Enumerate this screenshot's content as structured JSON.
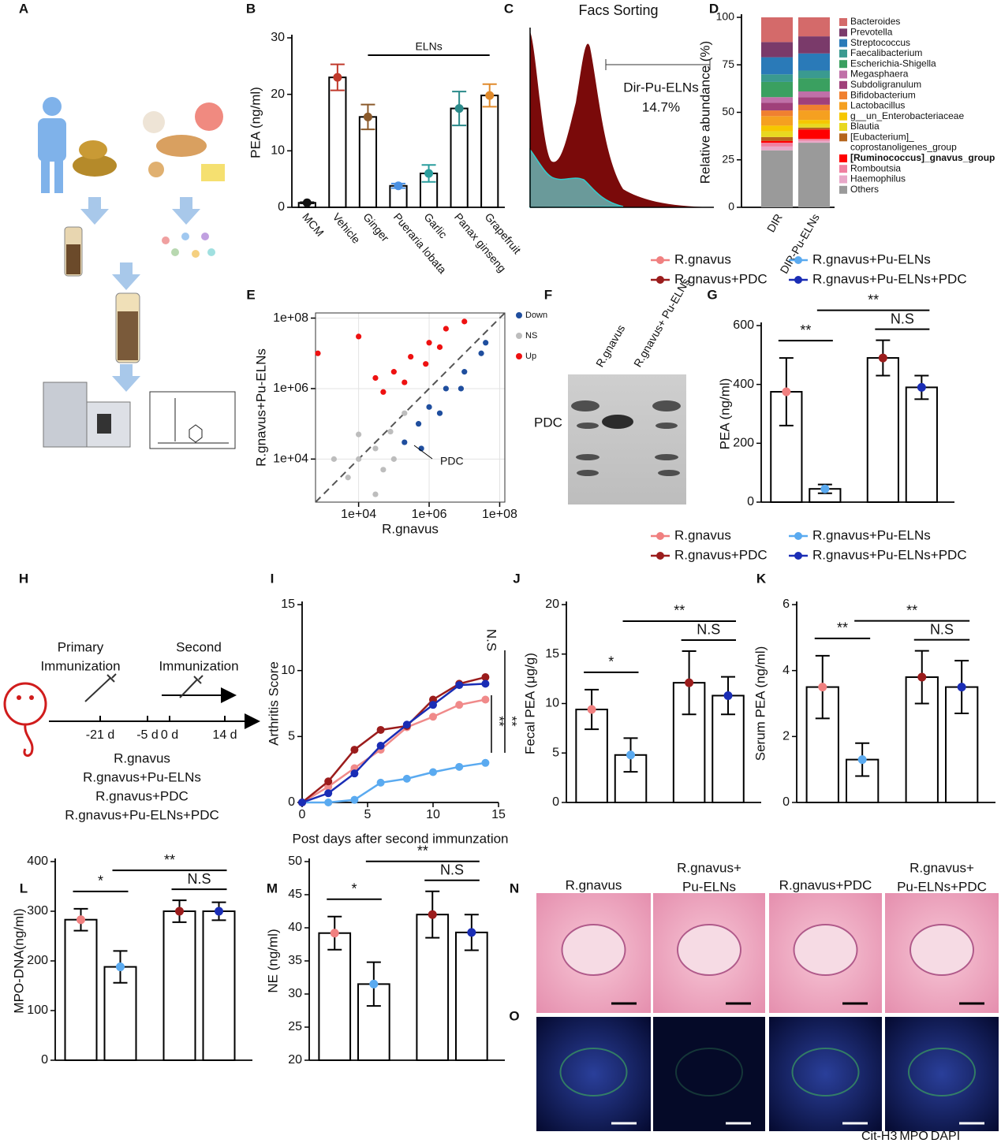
{
  "panel_labels": [
    "A",
    "B",
    "C",
    "D",
    "E",
    "F",
    "G",
    "H",
    "I",
    "J",
    "K",
    "L",
    "M",
    "N",
    "O"
  ],
  "facs": {
    "title": "Facs Sorting",
    "gate": "Dir-Pu-ELNs",
    "percent": "14.7%"
  },
  "blot": {
    "lanes": [
      "R.gnavus",
      "R.gnavus+ Pu-ELNs"
    ],
    "band": "PDC"
  },
  "timeline": {
    "primary": [
      "Primary",
      "Immunization"
    ],
    "second": [
      "Second",
      "Immunization"
    ],
    "days": [
      "-21 d",
      "-5 d",
      "0 d",
      "14 d"
    ],
    "groups": [
      "R.gnavus",
      "R.gnavus+Pu-ELNs",
      "R.gnavus+PDC",
      "R.gnavus+Pu-ELNs+PDC"
    ]
  },
  "histology": {
    "titles": [
      [
        "R.gnavus"
      ],
      [
        "R.gnavus+",
        "Pu-ELNs"
      ],
      [
        "R.gnavus+PDC"
      ],
      [
        "R.gnavus+",
        "Pu-ELNs+PDC"
      ]
    ]
  },
  "staining": [
    {
      "text": "Cit-H3",
      "color": "#e0252a"
    },
    {
      "text": "MPO",
      "color": "#1f9a3a"
    },
    {
      "text": "DAPI",
      "color": "#1f3fb5"
    }
  ],
  "chart_data": [
    {
      "type": "bar",
      "ylabel": "PEA (ng/ml)",
      "categories": [
        "MCM",
        "Vehicle",
        "Ginger",
        "Pueraria lobata",
        "Garlic",
        "Panax ginseng",
        "Grapefruit"
      ],
      "values": [
        0.8,
        23,
        16,
        3.8,
        6,
        17.5,
        19.8
      ],
      "errors": [
        0.1,
        2.3,
        2.2,
        0.4,
        1.5,
        3,
        2
      ],
      "colors": [
        "#111111",
        "#c0392b",
        "#8b5a2b",
        "#4a90e2",
        "#2a9d9d",
        "#2a8a8a",
        "#e08a2b"
      ],
      "ylim": [
        0,
        30
      ],
      "yticks": [
        0,
        10,
        20,
        30
      ],
      "annotations": [
        "ELNs"
      ]
    },
    {
      "type": "stacked_bar",
      "ylabel": "Relative abundance (%)",
      "categories": [
        "DIR",
        "DIR-Pu-ELNs"
      ],
      "ylim": [
        0,
        100
      ],
      "yticks": [
        0,
        25,
        50,
        75,
        100
      ],
      "series": [
        {
          "name": "Bacteroides",
          "color": "#d46a6a",
          "values": [
            13,
            10
          ]
        },
        {
          "name": "Prevotella",
          "color": "#7a3a6a",
          "values": [
            8,
            9
          ]
        },
        {
          "name": "Streptococcus",
          "color": "#2a7ab8",
          "values": [
            9,
            9
          ]
        },
        {
          "name": "Faecalibacterium",
          "color": "#3a9a90",
          "values": [
            4,
            4
          ]
        },
        {
          "name": "Escherichia-Shigella",
          "color": "#3aa060",
          "values": [
            8,
            7
          ]
        },
        {
          "name": "Megasphaera",
          "color": "#c070a8",
          "values": [
            3,
            3
          ]
        },
        {
          "name": "Subdoligranulum",
          "color": "#a0407a",
          "values": [
            4,
            4
          ]
        },
        {
          "name": "Bifidobacterium",
          "color": "#f08030",
          "values": [
            3,
            3
          ]
        },
        {
          "name": "Lactobacillus",
          "color": "#f5a020",
          "values": [
            5,
            5
          ]
        },
        {
          "name": "g__un_Enterobacteriaceae",
          "color": "#f6c700",
          "values": [
            3,
            2
          ]
        },
        {
          "name": "Blautia",
          "color": "#e8d820",
          "values": [
            3,
            2
          ]
        },
        {
          "name": "[Eubacterium]_ coprostanoligenes_group",
          "color": "#b5651d",
          "values": [
            2,
            1
          ]
        },
        {
          "name": "[Ruminococcus]_gnavus_group",
          "color": "#ff0000",
          "values": [
            1,
            5
          ],
          "highlight": true
        },
        {
          "name": "Romboutsia",
          "color": "#f080a0",
          "values": [
            2,
            1
          ]
        },
        {
          "name": "Haemophilus",
          "color": "#e8a8c8",
          "values": [
            2,
            1
          ]
        },
        {
          "name": "Others",
          "color": "#9a9a9a",
          "values": [
            30,
            34
          ]
        }
      ]
    },
    {
      "type": "scatter",
      "xlabel": "R.gnavus",
      "ylabel": "R.gnavus+Pu-ELNs",
      "log": true,
      "grid": true,
      "xlim": [
        600,
        140000000
      ],
      "ylim": [
        600,
        140000000
      ],
      "xticks": [
        {
          "value": 10000,
          "label": "1e+04"
        },
        {
          "value": 1000000,
          "label": "1e+06"
        },
        {
          "value": 100000000,
          "label": "1e+08"
        }
      ],
      "yticks": [
        {
          "value": 10000,
          "label": "1e+04"
        },
        {
          "value": 1000000,
          "label": "1e+06"
        },
        {
          "value": 100000000,
          "label": "1e+08"
        }
      ],
      "series": [
        {
          "name": "Down",
          "color": "#1f4e9e",
          "x": [
            200000,
            500000,
            1000000,
            3000000,
            10000000,
            30000000,
            600000,
            2000000,
            8000000,
            40000000
          ],
          "values": [
            30000,
            100000,
            300000,
            1000000,
            3000000,
            10000000,
            20000,
            200000,
            1000000,
            20000000
          ]
        },
        {
          "name": "NS",
          "color": "#bdbdbd",
          "x": [
            5000,
            10000,
            30000,
            80000,
            200000,
            50000,
            10000,
            2000,
            100000,
            30000
          ],
          "values": [
            3000,
            10000,
            20000,
            60000,
            200000,
            5000,
            50000,
            10000,
            10000,
            1000
          ]
        },
        {
          "name": "Up",
          "color": "#ee1111",
          "x": [
            30000,
            100000,
            300000,
            1000000,
            3000000,
            10000000,
            50000,
            200000,
            800000,
            2000000,
            10000,
            700
          ],
          "values": [
            2000000,
            3000000,
            8000000,
            20000000,
            50000000,
            80000000,
            800000,
            1500000,
            5000000,
            15000000,
            30000000,
            10000000
          ]
        }
      ],
      "annotations": [
        "PDC"
      ]
    },
    {
      "type": "bar",
      "ylabel": "PEA (ng/ml)",
      "ylim": [
        0,
        600
      ],
      "yticks": [
        0,
        200,
        400,
        600
      ],
      "series": [
        {
          "name": "R.gnavus",
          "color": "#f08080",
          "values": [
            375
          ],
          "errors": [
            115
          ]
        },
        {
          "name": "R.gnavus+Pu-ELNs",
          "color": "#5aaaf0",
          "values": [
            45
          ],
          "errors": [
            15
          ]
        },
        {
          "name": "R.gnavus+PDC",
          "color": "#9b1c1c",
          "values": [
            490
          ],
          "errors": [
            60
          ]
        },
        {
          "name": "R.gnavus+Pu-ELNs+PDC",
          "color": "#1a2db5",
          "values": [
            390
          ],
          "errors": [
            40
          ]
        }
      ],
      "annotations": [
        "**",
        "**",
        "N.S"
      ]
    },
    {
      "type": "line",
      "xlabel": "Post days after second immunzation",
      "ylabel": "Arthritis Score",
      "x": [
        0,
        2,
        4,
        6,
        8,
        10,
        12,
        14
      ],
      "xlim": [
        0,
        15
      ],
      "ylim": [
        0,
        15
      ],
      "xticks": [
        0,
        5,
        10,
        15
      ],
      "yticks": [
        0,
        5,
        10,
        15
      ],
      "series": [
        {
          "color": "#f08a8a",
          "values": [
            0,
            1.2,
            2.6,
            4,
            5.7,
            6.5,
            7.4,
            7.8
          ]
        },
        {
          "color": "#5aaaf0",
          "values": [
            0,
            0,
            0.2,
            1.5,
            1.8,
            2.3,
            2.7,
            3
          ]
        },
        {
          "color": "#9b1c1c",
          "values": [
            0,
            1.6,
            4,
            5.5,
            5.8,
            7.8,
            9,
            9.5
          ]
        },
        {
          "color": "#1a2db5",
          "values": [
            0,
            0.7,
            2.2,
            4.3,
            5.9,
            7.4,
            8.9,
            9
          ]
        }
      ],
      "annotations": [
        "N.S",
        "**",
        "**"
      ]
    },
    {
      "type": "bar",
      "ylabel": "Fecal PEA (μg/g)",
      "ylim": [
        0,
        20
      ],
      "yticks": [
        0,
        5,
        10,
        15,
        20
      ],
      "series": [
        {
          "name": "R.gnavus",
          "color": "#f08080",
          "values": [
            9.4
          ],
          "errors": [
            2
          ]
        },
        {
          "name": "R.gnavus+Pu-ELNs",
          "color": "#5aaaf0",
          "values": [
            4.8
          ],
          "errors": [
            1.7
          ]
        },
        {
          "name": "R.gnavus+PDC",
          "color": "#9b1c1c",
          "values": [
            12.1
          ],
          "errors": [
            3.2
          ]
        },
        {
          "name": "R.gnavus+Pu-ELNs+PDC",
          "color": "#1a2db5",
          "values": [
            10.8
          ],
          "errors": [
            1.9
          ]
        }
      ],
      "annotations": [
        "*",
        "**",
        "N.S"
      ]
    },
    {
      "type": "bar",
      "ylabel": "Serum PEA (ng/ml)",
      "ylim": [
        0,
        6
      ],
      "yticks": [
        0,
        2,
        4,
        6
      ],
      "values": [
        3.5,
        1.3,
        3.8,
        3.5
      ],
      "errors": [
        0.95,
        0.5,
        0.8,
        0.8
      ],
      "colors": [
        "#f08080",
        "#5aaaf0",
        "#9b1c1c",
        "#1a2db5"
      ],
      "annotations": [
        "**",
        "**",
        "N.S"
      ]
    },
    {
      "type": "bar",
      "ylabel": "MPO-DNA(ng/ml)",
      "ylim": [
        0,
        400
      ],
      "yticks": [
        0,
        100,
        200,
        300,
        400
      ],
      "values": [
        283,
        188,
        300,
        300
      ],
      "errors": [
        22,
        32,
        22,
        18
      ],
      "colors": [
        "#f08080",
        "#5aaaf0",
        "#9b1c1c",
        "#1a2db5"
      ],
      "annotations": [
        "*",
        "**",
        "N.S"
      ]
    },
    {
      "type": "bar",
      "ylabel": "NE (ng/ml)",
      "ylim": [
        20,
        50
      ],
      "yticks": [
        20,
        25,
        30,
        35,
        40,
        45,
        50
      ],
      "values": [
        39.2,
        31.5,
        42,
        39.3
      ],
      "errors": [
        2.5,
        3.3,
        3.5,
        2.7
      ],
      "colors": [
        "#f08080",
        "#5aaaf0",
        "#9b1c1c",
        "#1a2db5"
      ],
      "annotations": [
        "*",
        "**",
        "N.S"
      ]
    }
  ]
}
